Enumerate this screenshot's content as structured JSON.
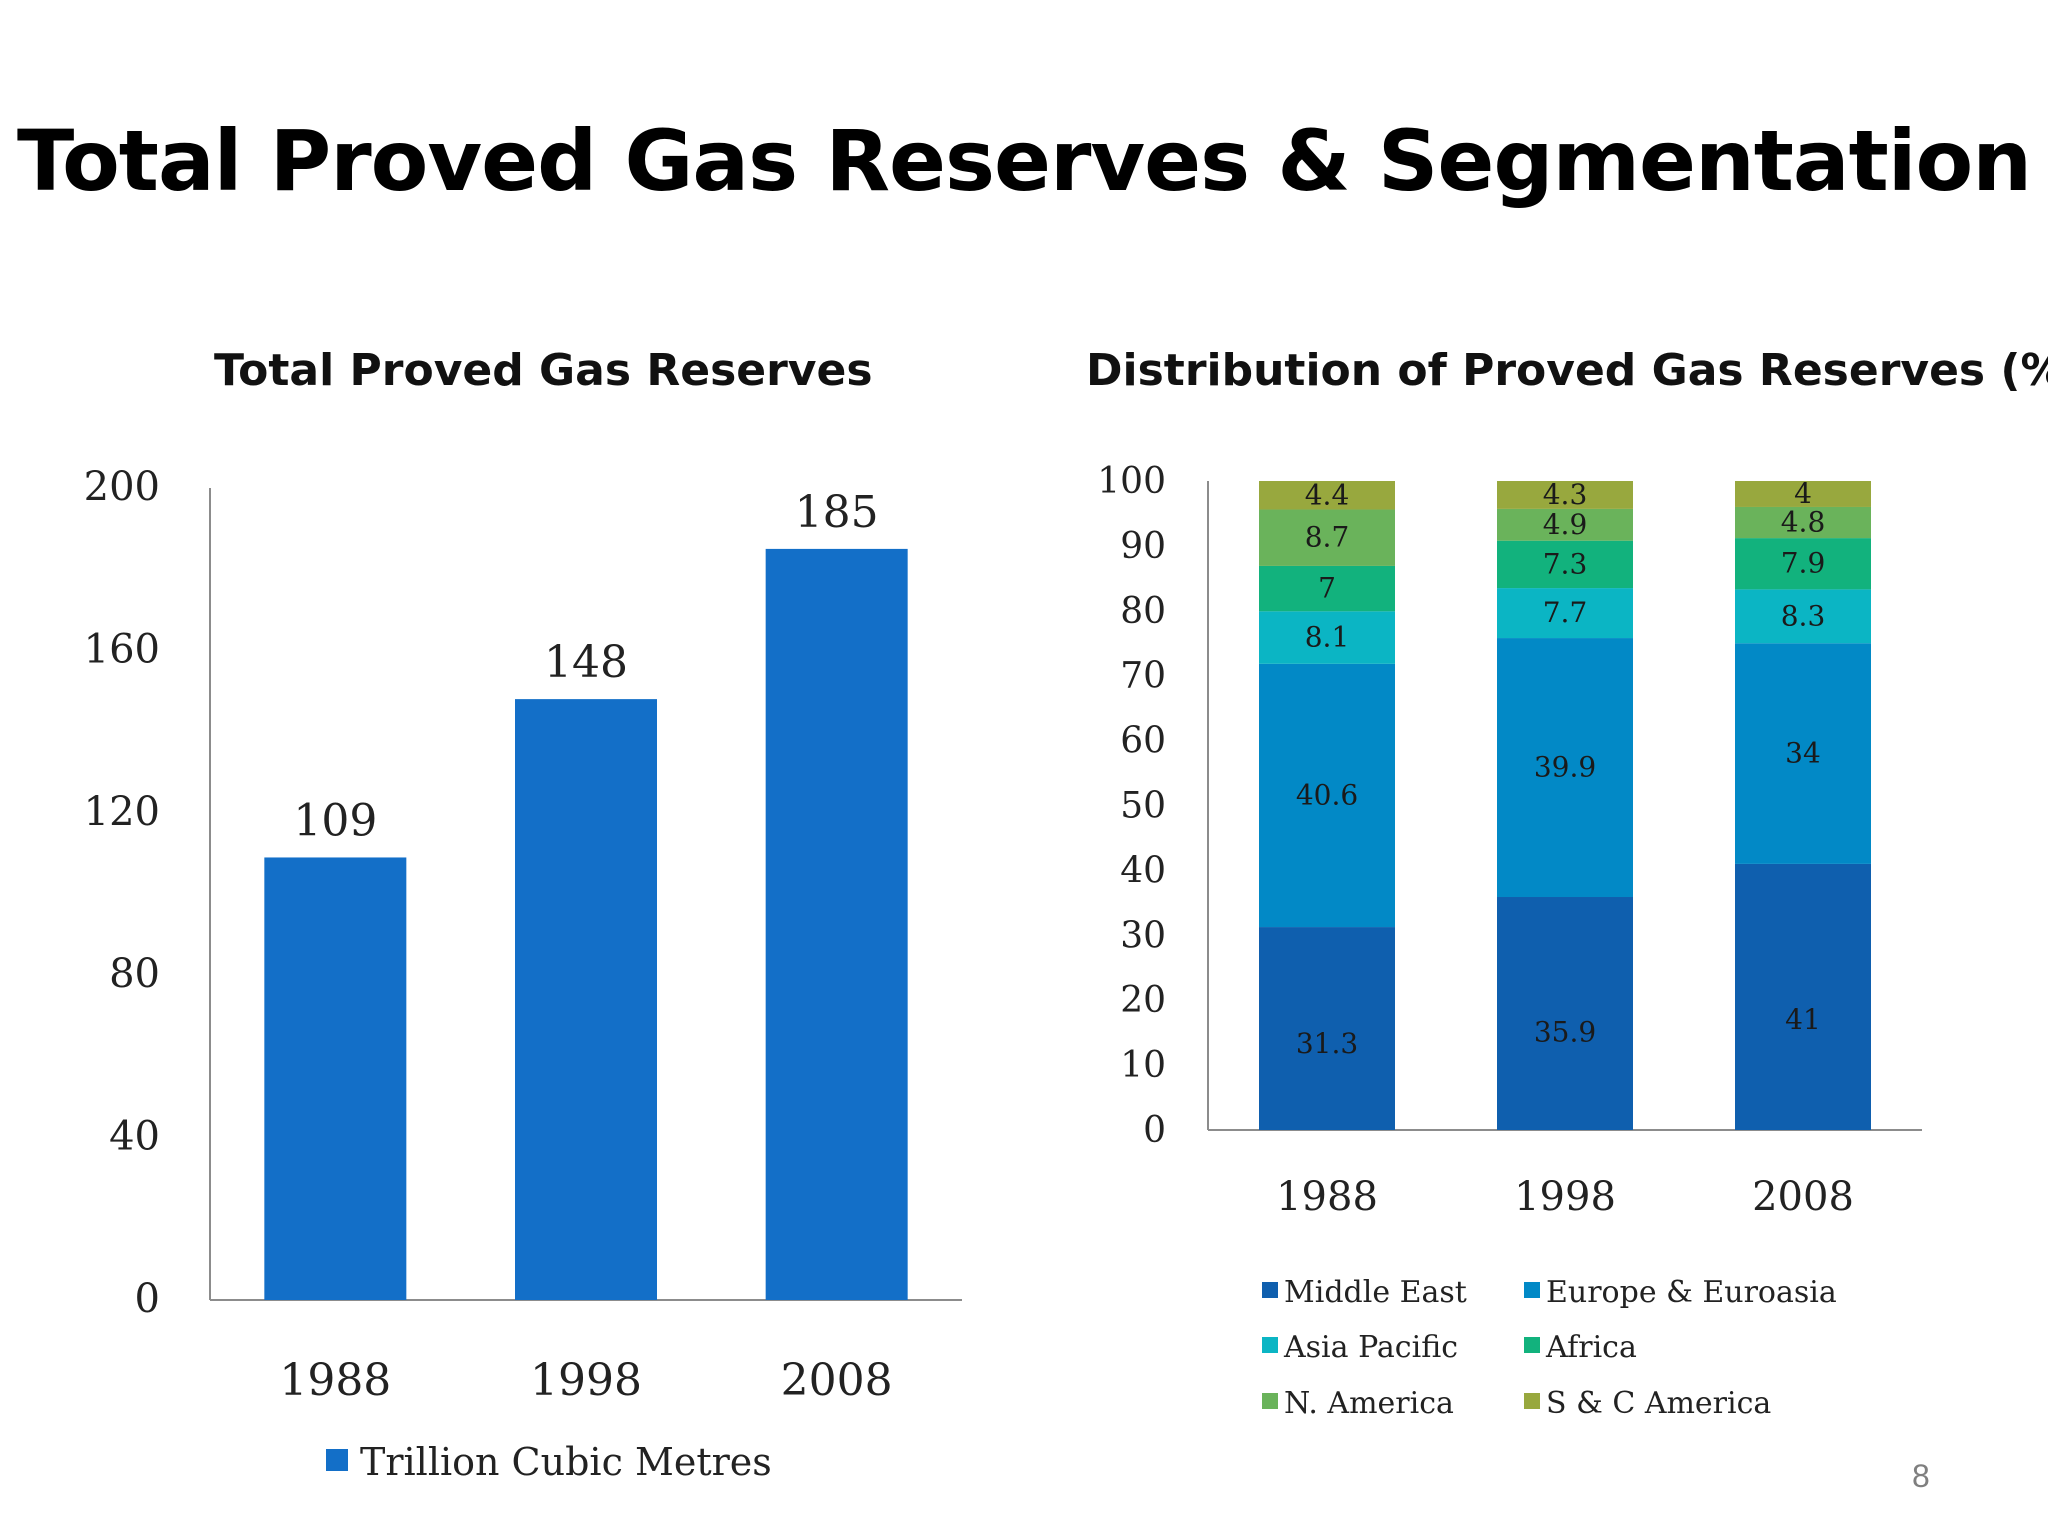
{
  "title": "Total Proved Gas Reserves & Segmentation",
  "page_number": "8",
  "charts": {
    "left": {
      "heading": "Total Proved Gas Reserves"
    },
    "right": {
      "heading": "Distribution of Proved Gas Reserves (%)"
    }
  },
  "chart_data": [
    {
      "type": "bar",
      "title": "Total Proved Gas Reserves",
      "categories": [
        "1988",
        "1998",
        "2008"
      ],
      "series": [
        {
          "name": "Trillion Cubic Metres",
          "values": [
            109,
            148,
            185
          ],
          "color": "#136fc8"
        }
      ],
      "data_labels": [
        "109",
        "148",
        "185"
      ],
      "yticks": [
        "0",
        "40",
        "80",
        "120",
        "160",
        "200"
      ],
      "ylim": [
        0,
        200
      ],
      "grid": false,
      "legend": "bottom"
    },
    {
      "type": "bar",
      "stacked": true,
      "title": "Distribution of Proved Gas Reserves (%)",
      "categories": [
        "1988",
        "1998",
        "2008"
      ],
      "series": [
        {
          "name": "Middle East",
          "values": [
            31.3,
            35.9,
            41
          ],
          "labels": [
            "31.3",
            "35.9",
            "41"
          ],
          "color": "#0f5fae"
        },
        {
          "name": "Europe & Euroasia",
          "values": [
            40.6,
            39.9,
            34
          ],
          "labels": [
            "40.6",
            "39.9",
            "34"
          ],
          "color": "#0289c6"
        },
        {
          "name": "Asia Pacific",
          "values": [
            8.1,
            7.7,
            8.3
          ],
          "labels": [
            "8.1",
            "7.7",
            "8.3"
          ],
          "color": "#0bb5c4"
        },
        {
          "name": "Africa",
          "values": [
            7,
            7.3,
            7.9
          ],
          "labels": [
            "7",
            "7.3",
            "7.9"
          ],
          "color": "#12b27d"
        },
        {
          "name": "N. America",
          "values": [
            8.7,
            4.9,
            4.8
          ],
          "labels": [
            "8.7",
            "4.9",
            "4.8"
          ],
          "color": "#6ab35b"
        },
        {
          "name": "S & C America",
          "values": [
            4.4,
            4.3,
            4
          ],
          "labels": [
            "4.4",
            "4.3",
            "4"
          ],
          "color": "#98a83e"
        }
      ],
      "yticks": [
        "0",
        "10",
        "20",
        "30",
        "40",
        "50",
        "60",
        "70",
        "80",
        "90",
        "100"
      ],
      "ylim": [
        0,
        100
      ],
      "grid": false,
      "legend": "bottom"
    }
  ]
}
